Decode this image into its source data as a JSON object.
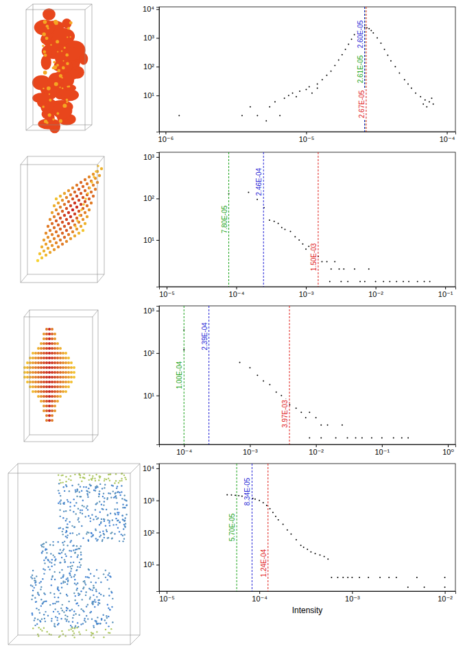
{
  "chart_data": [
    {
      "type": "scatter",
      "log": true,
      "marker": "point",
      "color": "#000000",
      "xlim": [
        9e-07,
        0.000115
      ],
      "ylim": [
        0.55,
        12000
      ],
      "xticks": [
        {
          "value": 1e-06,
          "label": "10⁻⁶"
        },
        {
          "value": 1e-05,
          "label": "10⁻⁵"
        },
        {
          "value": 0.0001,
          "label": "10⁻⁴"
        }
      ],
      "yticks": [
        {
          "value": 10,
          "label": "10¹"
        },
        {
          "value": 100,
          "label": "10²"
        },
        {
          "value": 1000,
          "label": "10³"
        },
        {
          "value": 10000,
          "label": "10⁴"
        }
      ],
      "x": [
        1.25e-06,
        3.5e-06,
        4e-06,
        4.5e-06,
        5.2e-06,
        5.5e-06,
        6e-06,
        6.5e-06,
        7e-06,
        7.5e-06,
        8e-06,
        8.5e-06,
        9e-06,
        1e-05,
        1.05e-05,
        1.1e-05,
        1.2e-05,
        1.3e-05,
        1.4e-05,
        1.5e-05,
        1.6e-05,
        1.7e-05,
        1.8e-05,
        1.9e-05,
        2e-05,
        2.1e-05,
        2.2e-05,
        2.3e-05,
        2.4e-05,
        2.5e-05,
        2.6e-05,
        2.7e-05,
        2.8e-05,
        2.9e-05,
        3e-05,
        3.2e-05,
        3.4e-05,
        3.6e-05,
        3.8e-05,
        4e-05,
        4.3e-05,
        4.6e-05,
        5e-05,
        5.3e-05,
        5.6e-05,
        6e-05,
        6.5e-05,
        7e-05,
        7.5e-05,
        8e-05,
        7.2e-05,
        7.8e-05,
        6.8e-05,
        1.2e-05
      ],
      "y": [
        2,
        2,
        4,
        2,
        1.3,
        4,
        6,
        2,
        8,
        10,
        12,
        9,
        14,
        16,
        20,
        12,
        25,
        35,
        50,
        70,
        110,
        170,
        260,
        400,
        600,
        900,
        1300,
        1700,
        2000,
        2200,
        2300,
        2250,
        2100,
        1800,
        1500,
        1000,
        650,
        400,
        250,
        160,
        100,
        60,
        35,
        25,
        18,
        12,
        9,
        7,
        6,
        5,
        4,
        8,
        5,
        18
      ],
      "vlines": [
        {
          "value": 2.61e-05,
          "label": "2.61E-05",
          "color": "#1aa31a",
          "line_style": "dashed"
        },
        {
          "value": 2.6e-05,
          "label": "2.60E-05",
          "color": "#1f1fd6",
          "line_style": "dashed"
        },
        {
          "value": 2.67e-05,
          "label": "2.67E-05",
          "color": "#e0201b",
          "line_style": "dashed"
        }
      ]
    },
    {
      "type": "scatter",
      "log": true,
      "marker": "point",
      "color": "#000000",
      "xlim": [
        7.8e-06,
        0.14
      ],
      "ylim": [
        0.75,
        1300
      ],
      "xticks": [
        {
          "value": 1e-05,
          "label": "10⁻⁵"
        },
        {
          "value": 0.0001,
          "label": "10⁻⁴"
        },
        {
          "value": 0.001,
          "label": "10⁻³"
        },
        {
          "value": 0.01,
          "label": "10⁻²"
        },
        {
          "value": 0.1,
          "label": "10⁻¹"
        }
      ],
      "yticks": [
        {
          "value": 10,
          "label": "10¹"
        },
        {
          "value": 100,
          "label": "10²"
        },
        {
          "value": 1000,
          "label": "10³"
        }
      ],
      "x": [
        7.8e-05,
        0.00015,
        0.0002,
        0.00025,
        0.0003,
        0.00035,
        0.0004,
        0.00045,
        0.0005,
        0.0006,
        0.0007,
        0.0008,
        0.0009,
        0.001,
        0.0011,
        0.0012,
        0.0014,
        0.0015,
        0.0017,
        0.002,
        0.0023,
        0.0026,
        0.003,
        0.0035,
        0.004,
        0.005,
        0.006,
        0.007,
        0.008,
        0.01,
        0.013,
        0.016,
        0.02,
        0.025,
        0.03,
        0.04,
        0.05,
        0.06,
        0.0012,
        0.0022,
        0.0032
      ],
      "y": [
        130,
        140,
        95,
        60,
        30,
        28,
        25,
        20,
        18,
        16,
        12,
        10,
        8,
        6,
        7,
        5,
        4,
        4,
        3,
        3,
        2,
        3,
        2,
        2,
        1,
        2,
        1,
        1,
        2,
        1,
        1,
        1,
        1,
        1,
        1,
        1,
        1,
        1,
        3,
        1,
        1
      ],
      "vlines": [
        {
          "value": 7.8e-05,
          "label": "7.80E-05",
          "color": "#1aa31a",
          "line_style": "dashed"
        },
        {
          "value": 0.000246,
          "label": "2.46E-04",
          "color": "#1f1fd6",
          "line_style": "dashed"
        },
        {
          "value": 0.0015,
          "label": "1.50E-03",
          "color": "#e0201b",
          "line_style": "dashed"
        }
      ]
    },
    {
      "type": "scatter",
      "log": true,
      "marker": "point",
      "color": "#000000",
      "xlim": [
        4.2e-05,
        1.3
      ],
      "ylim": [
        0.7,
        1300
      ],
      "xticks": [
        {
          "value": 0.0001,
          "label": "10⁻⁴"
        },
        {
          "value": 0.001,
          "label": "10⁻³"
        },
        {
          "value": 0.01,
          "label": "10⁻²"
        },
        {
          "value": 0.1,
          "label": "10⁻¹"
        },
        {
          "value": 1,
          "label": "10⁰"
        }
      ],
      "yticks": [
        {
          "value": 10,
          "label": "10¹"
        },
        {
          "value": 100,
          "label": "10²"
        },
        {
          "value": 1000,
          "label": "10³"
        }
      ],
      "x": [
        0.0001,
        0.0001,
        0.0007,
        0.001,
        0.0013,
        0.0016,
        0.002,
        0.0025,
        0.003,
        0.0035,
        0.004,
        0.005,
        0.006,
        0.007,
        0.008,
        0.01,
        0.012,
        0.015,
        0.02,
        0.025,
        0.03,
        0.04,
        0.05,
        0.07,
        0.1,
        0.15,
        0.2,
        0.25,
        0.012,
        0.008
      ],
      "y": [
        350,
        120,
        60,
        45,
        30,
        22,
        18,
        12,
        10,
        8,
        6,
        5,
        4,
        3,
        4,
        3,
        2,
        2,
        1,
        2,
        1,
        1,
        1,
        1,
        1,
        1,
        1,
        1,
        1,
        1
      ],
      "vlines": [
        {
          "value": 0.0001,
          "label": "1.00E-04",
          "color": "#1aa31a",
          "line_style": "dashed"
        },
        {
          "value": 0.000239,
          "label": "2.39E-04",
          "color": "#1f1fd6",
          "line_style": "dashed"
        },
        {
          "value": 0.00397,
          "label": "3.97E-03",
          "color": "#e0201b",
          "line_style": "dashed"
        }
      ]
    },
    {
      "type": "scatter",
      "log": true,
      "marker": "point",
      "color": "#000000",
      "x_label": "Intensity",
      "xlim": [
        8.3e-06,
        0.013
      ],
      "ylim": [
        1.5,
        14000
      ],
      "xticks": [
        {
          "value": 1e-05,
          "label": "10⁻⁵"
        },
        {
          "value": 0.0001,
          "label": "10⁻⁴"
        },
        {
          "value": 0.001,
          "label": "10⁻³"
        },
        {
          "value": 0.01,
          "label": "10⁻²"
        }
      ],
      "yticks": [
        {
          "value": 10,
          "label": "10¹"
        },
        {
          "value": 100,
          "label": "10²"
        },
        {
          "value": 1000,
          "label": "10³"
        },
        {
          "value": 10000,
          "label": "10⁴"
        }
      ],
      "x": [
        4.5e-05,
        5e-05,
        5.5e-05,
        6e-05,
        6.5e-05,
        7e-05,
        7.5e-05,
        8e-05,
        8.5e-05,
        9e-05,
        0.0001,
        0.00011,
        0.00012,
        0.00013,
        0.00014,
        0.00015,
        0.00016,
        0.00018,
        0.0002,
        0.00022,
        0.00025,
        0.00028,
        0.0003,
        0.00033,
        0.00036,
        0.0004,
        0.00045,
        0.0005,
        0.00055,
        0.0006,
        0.0007,
        0.0008,
        0.0009,
        0.001,
        0.0012,
        0.0015,
        0.002,
        0.0025,
        0.003,
        0.004,
        0.005,
        0.006,
        0.01,
        0.01
      ],
      "y": [
        1500,
        1480,
        1450,
        1400,
        1350,
        1300,
        1250,
        1200,
        1150,
        1100,
        1000,
        850,
        700,
        550,
        420,
        320,
        250,
        180,
        120,
        90,
        60,
        40,
        35,
        30,
        25,
        22,
        20,
        18,
        15,
        4,
        4,
        4,
        4,
        4,
        4,
        4,
        4,
        4,
        4,
        2,
        4,
        2,
        4,
        2
      ],
      "vlines": [
        {
          "value": 5.7e-05,
          "label": "5.70E-05",
          "color": "#1aa31a",
          "line_style": "dashed"
        },
        {
          "value": 8.34e-05,
          "label": "8.34E-05",
          "color": "#1f1fd6",
          "line_style": "dashed"
        },
        {
          "value": 0.000124,
          "label": "1.24E-04",
          "color": "#e0201b",
          "line_style": "dashed"
        }
      ]
    }
  ]
}
